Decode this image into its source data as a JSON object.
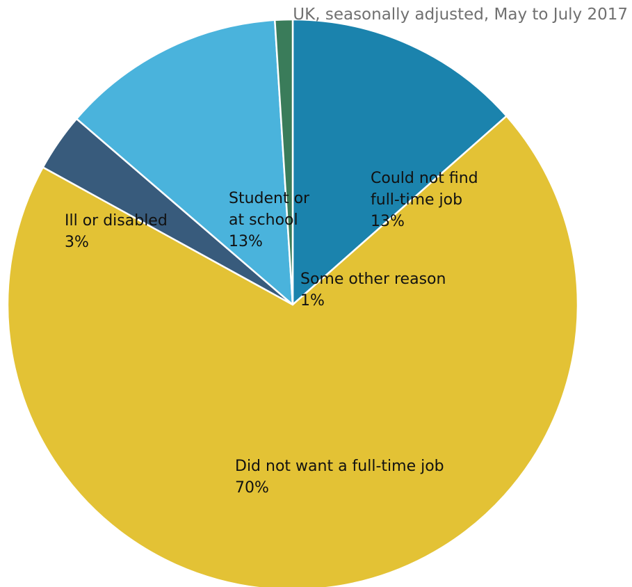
{
  "chart_data": {
    "type": "pie",
    "subtitle": "UK, seasonally adjusted, May to July 2017",
    "start_angle_deg": 0,
    "direction": "clockwise",
    "slices": [
      {
        "label_lines": [
          "Could not find",
          "full-time job"
        ],
        "value_label": "13%",
        "value": 13.5,
        "color": "#1b83ad"
      },
      {
        "label_lines": [
          "Did not want a full-time job"
        ],
        "value_label": "70%",
        "value": 69.5,
        "color": "#e3c235"
      },
      {
        "label_lines": [
          "Ill or disabled"
        ],
        "value_label": "3%",
        "value": 3.3,
        "color": "#385b7c"
      },
      {
        "label_lines": [
          "Student or",
          "at school"
        ],
        "value_label": "13%",
        "value": 12.7,
        "color": "#4ab3dc"
      },
      {
        "label_lines": [
          "Some other reason"
        ],
        "value_label": "1%",
        "value": 1.0,
        "color": "#3a7c5a"
      }
    ]
  }
}
